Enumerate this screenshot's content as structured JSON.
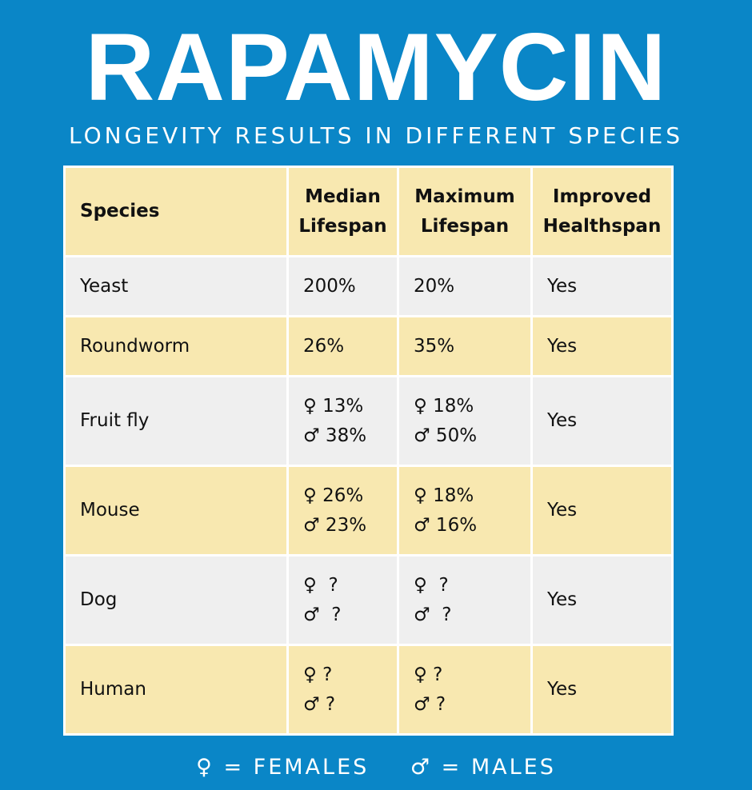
{
  "title": "RAPAMYCIN",
  "subtitle": "LONGEVITY RESULTS IN DIFFERENT SPECIES",
  "table": {
    "headers": {
      "species": "Species",
      "median": [
        "Median",
        "Lifespan"
      ],
      "maximum": [
        "Maximum",
        "Lifespan"
      ],
      "healthspan": [
        "Improved",
        "Healthspan"
      ]
    },
    "rows": [
      {
        "species": "Yeast",
        "median": [
          "200%"
        ],
        "maximum": [
          "20%"
        ],
        "healthspan": "Yes"
      },
      {
        "species": "Roundworm",
        "median": [
          "26%"
        ],
        "maximum": [
          "35%"
        ],
        "healthspan": "Yes"
      },
      {
        "species": "Fruit fly",
        "median": [
          "♀ 13%",
          "♂ 38%"
        ],
        "maximum": [
          "♀ 18%",
          "♂ 50%"
        ],
        "healthspan": "Yes"
      },
      {
        "species": "Mouse",
        "median": [
          "♀ 26%",
          "♂ 23%"
        ],
        "maximum": [
          "♀ 18%",
          "♂ 16%"
        ],
        "healthspan": "Yes"
      },
      {
        "species": "Dog",
        "median": [
          "♀  ?",
          "♂  ?"
        ],
        "maximum": [
          "♀  ?",
          "♂  ?"
        ],
        "healthspan": "Yes"
      },
      {
        "species": "Human",
        "median": [
          "♀ ?",
          "♂ ?"
        ],
        "maximum": [
          "♀ ?",
          "♂ ?"
        ],
        "healthspan": "Yes"
      }
    ]
  },
  "legend": {
    "females": "♀ = FEMALES",
    "males": "♂ = MALES"
  }
}
